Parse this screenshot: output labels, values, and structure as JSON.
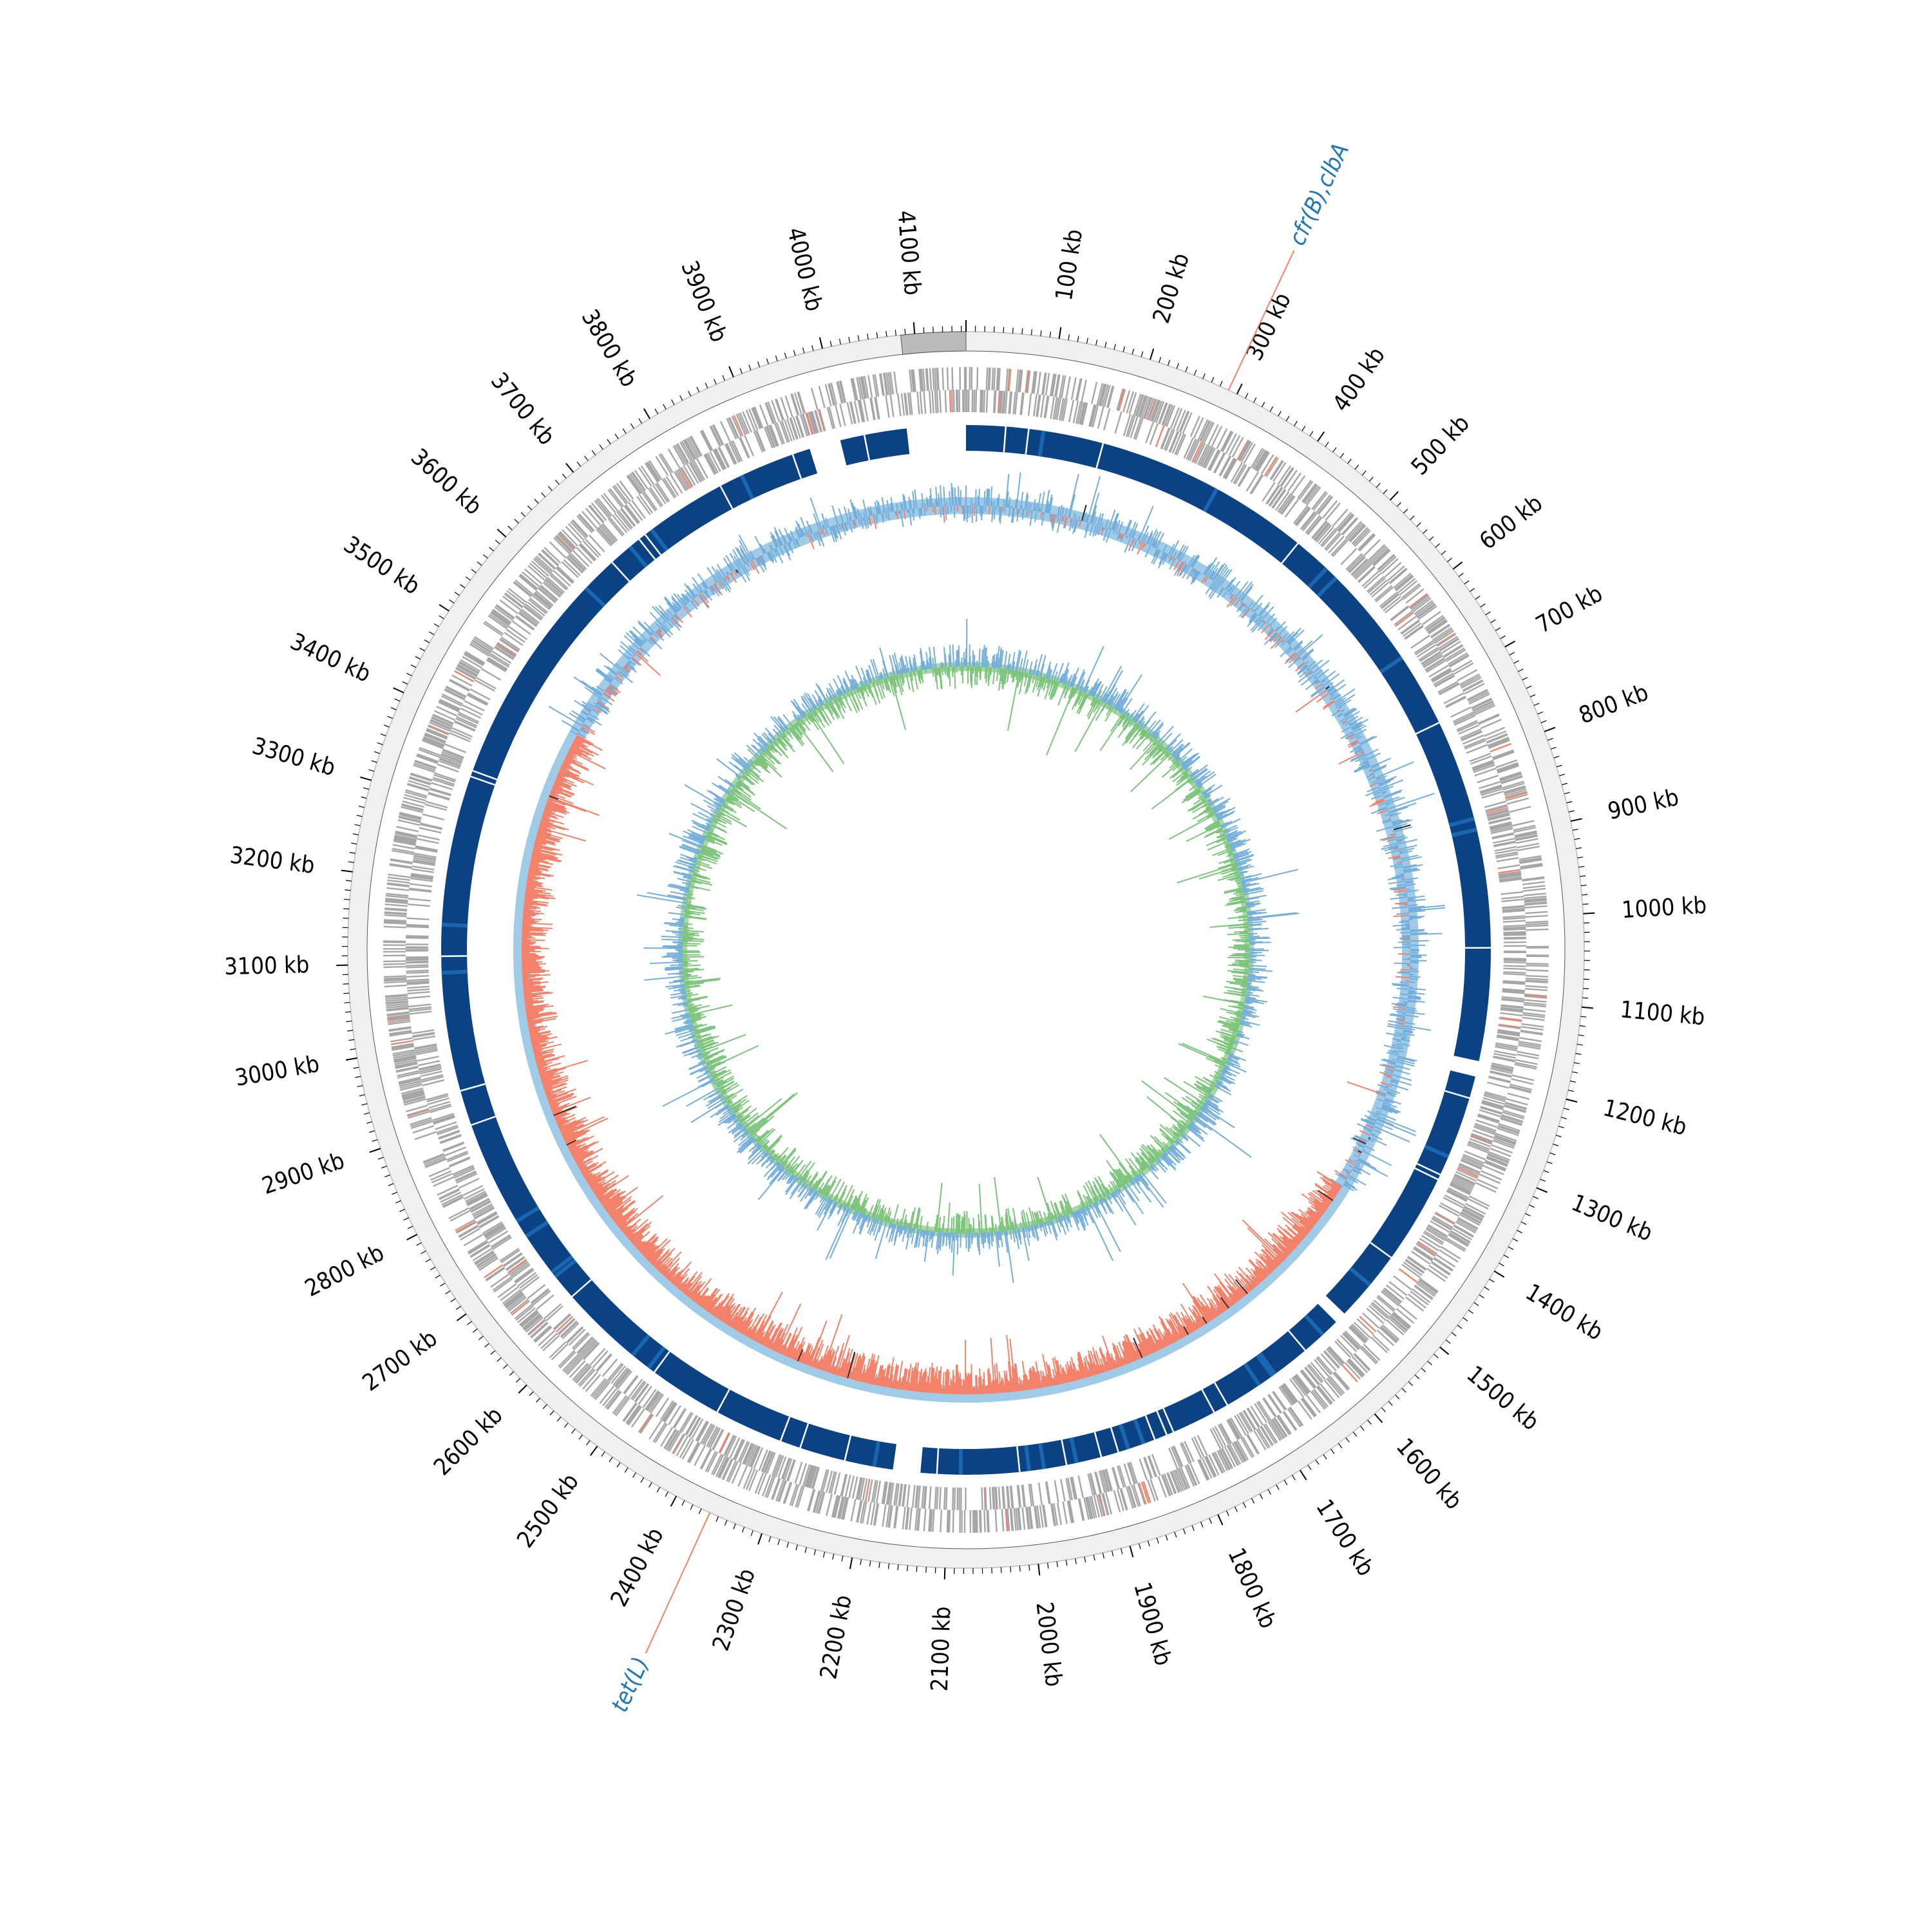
{
  "figure": {
    "genome_length_kb": 4155,
    "colors": {
      "ring_background": "#f0f0f0",
      "contig_marker": "#bbbbbb",
      "cds": "#a6a6a6",
      "cds_highlight": "#f4826a",
      "similarity_block": "#0b4283",
      "similarity_light": "#1a66b0",
      "gc_content_pos": "#74aedb",
      "gc_content_neg": "#f4826a",
      "gc_content_dark": "#222222",
      "gc_skew_pos": "#7cc47b",
      "gc_skew_neg": "#74aedb",
      "gene_label_text": "#1f77b4",
      "gene_label_line": "#f4826a"
    }
  },
  "ticks": [
    {
      "kb": 100,
      "label": "100 kb"
    },
    {
      "kb": 200,
      "label": "200 kb"
    },
    {
      "kb": 300,
      "label": "300 kb"
    },
    {
      "kb": 400,
      "label": "400 kb"
    },
    {
      "kb": 500,
      "label": "500 kb"
    },
    {
      "kb": 600,
      "label": "600 kb"
    },
    {
      "kb": 700,
      "label": "700 kb"
    },
    {
      "kb": 800,
      "label": "800 kb"
    },
    {
      "kb": 900,
      "label": "900 kb"
    },
    {
      "kb": 1000,
      "label": "1000 kb"
    },
    {
      "kb": 1100,
      "label": "1100 kb"
    },
    {
      "kb": 1200,
      "label": "1200 kb"
    },
    {
      "kb": 1300,
      "label": "1300 kb"
    },
    {
      "kb": 1400,
      "label": "1400 kb"
    },
    {
      "kb": 1500,
      "label": "1500 kb"
    },
    {
      "kb": 1600,
      "label": "1600 kb"
    },
    {
      "kb": 1700,
      "label": "1700 kb"
    },
    {
      "kb": 1800,
      "label": "1800 kb"
    },
    {
      "kb": 1900,
      "label": "1900 kb"
    },
    {
      "kb": 2000,
      "label": "2000 kb"
    },
    {
      "kb": 2100,
      "label": "2100 kb"
    },
    {
      "kb": 2200,
      "label": "2200 kb"
    },
    {
      "kb": 2300,
      "label": "2300 kb"
    },
    {
      "kb": 2400,
      "label": "2400 kb"
    },
    {
      "kb": 2500,
      "label": "2500 kb"
    },
    {
      "kb": 2600,
      "label": "2600 kb"
    },
    {
      "kb": 2700,
      "label": "2700 kb"
    },
    {
      "kb": 2800,
      "label": "2800 kb"
    },
    {
      "kb": 2900,
      "label": "2900 kb"
    },
    {
      "kb": 3000,
      "label": "3000 kb"
    },
    {
      "kb": 3100,
      "label": "3100 kb"
    },
    {
      "kb": 3200,
      "label": "3200 kb"
    },
    {
      "kb": 3300,
      "label": "3300 kb"
    },
    {
      "kb": 3400,
      "label": "3400 kb"
    },
    {
      "kb": 3500,
      "label": "3500 kb"
    },
    {
      "kb": 3600,
      "label": "3600 kb"
    },
    {
      "kb": 3700,
      "label": "3700 kb"
    },
    {
      "kb": 3800,
      "label": "3800 kb"
    },
    {
      "kb": 3900,
      "label": "3900 kb"
    },
    {
      "kb": 4000,
      "label": "4000 kb"
    },
    {
      "kb": 4100,
      "label": "4100 kb"
    }
  ],
  "contig_marker_kb": [
    4085,
    4155
  ],
  "gene_labels": [
    {
      "kb": 290,
      "label": "cfr(B),clbA"
    },
    {
      "kb": 2360,
      "label": "tet(L)"
    }
  ],
  "similarity_gaps_kb": [
    [
      4080,
      4155
    ],
    [
      3955,
      3995
    ],
    [
      2135,
      2170
    ],
    [
      1545,
      1560
    ],
    [
      1180,
      1200
    ]
  ]
}
